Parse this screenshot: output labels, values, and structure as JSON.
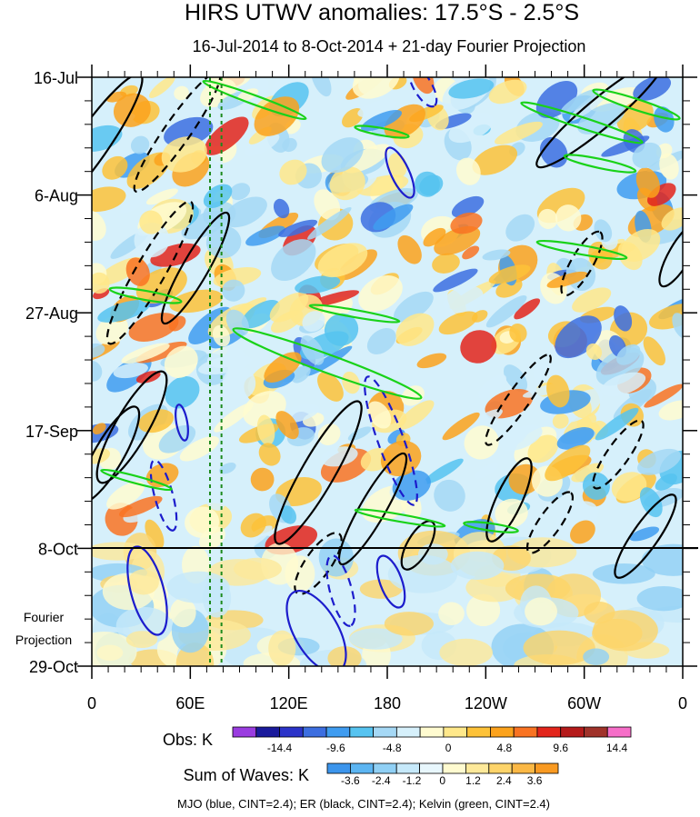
{
  "chart_data": {
    "type": "heatmap",
    "title": "HIRS UTWV anomalies: 17.5°S - 2.5°S",
    "subtitle": "16-Jul-2014 to 8-Oct-2014 + 21-day Fourier Projection",
    "y_tick_labels": [
      "16-Jul",
      "6-Aug",
      "27-Aug",
      "17-Sep",
      "8-Oct",
      "29-Oct"
    ],
    "x_tick_labels": [
      "0",
      "60E",
      "120E",
      "180",
      "120W",
      "60W",
      "0"
    ],
    "x_range": [
      0,
      360
    ],
    "y_range_days": [
      0,
      105
    ],
    "projection_label": [
      "Fourier",
      "Projection"
    ],
    "projection_start": "8-Oct",
    "vertical_dashed_lines_lon": [
      72,
      79
    ],
    "obs_colorbar": {
      "label": "Obs: K",
      "tick_labels": [
        "-14.4",
        "-9.6",
        "-4.8",
        "0",
        "4.8",
        "9.6",
        "14.4"
      ],
      "colors": [
        "#9a3ce0",
        "#1a1a9c",
        "#2b33c9",
        "#3c6ee0",
        "#3f9cf0",
        "#56c3f0",
        "#a5d8f5",
        "#d6f0fb",
        "#fffbd0",
        "#ffe88a",
        "#fdc238",
        "#fba21c",
        "#f97322",
        "#e3251b",
        "#b51a1a",
        "#a0322a",
        "#f66ec8"
      ]
    },
    "waves_colorbar": {
      "label": "Sum of Waves: K",
      "tick_labels": [
        "-3.6",
        "-2.4",
        "-1.2",
        "0",
        "1.2",
        "2.4",
        "3.6"
      ],
      "colors": [
        "#3c95ec",
        "#5cb5f2",
        "#90d0f5",
        "#c6e9fa",
        "#e8f7fd",
        "#fffbd0",
        "#fde99a",
        "#fdd46a",
        "#fbb845",
        "#f99a22"
      ]
    },
    "footer": "MJO (blue, CINT=2.4); ER (black, CINT=2.4); Kelvin (green, CINT=2.4)",
    "series": [
      {
        "name": "MJO",
        "color": "#1c1ccc"
      },
      {
        "name": "ER",
        "color": "#000000"
      },
      {
        "name": "Kelvin",
        "color": "#19d219"
      }
    ]
  }
}
